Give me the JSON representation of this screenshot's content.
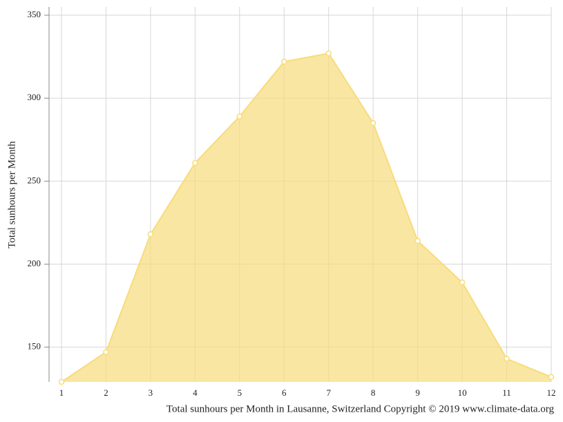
{
  "chart_data": {
    "type": "area",
    "x_label": "Total sunhours per Month in Lausanne, Switzerland Copyright © 2019 www.climate-data.org",
    "y_label": "Total sunhours per Month",
    "x": [
      1,
      2,
      3,
      4,
      5,
      6,
      7,
      8,
      9,
      10,
      11,
      12
    ],
    "series": [
      {
        "color": "#f7dc7a",
        "values": [
          129,
          147,
          218,
          261,
          289,
          322,
          327,
          285,
          214,
          189,
          143,
          132
        ]
      }
    ],
    "xlim": [
      1,
      12
    ],
    "xticks": [
      1,
      2,
      3,
      4,
      5,
      6,
      7,
      8,
      9,
      10,
      11,
      12
    ],
    "ylim": [
      129,
      355
    ],
    "yticks": [
      150,
      200,
      250,
      300,
      350
    ],
    "grid": true
  }
}
